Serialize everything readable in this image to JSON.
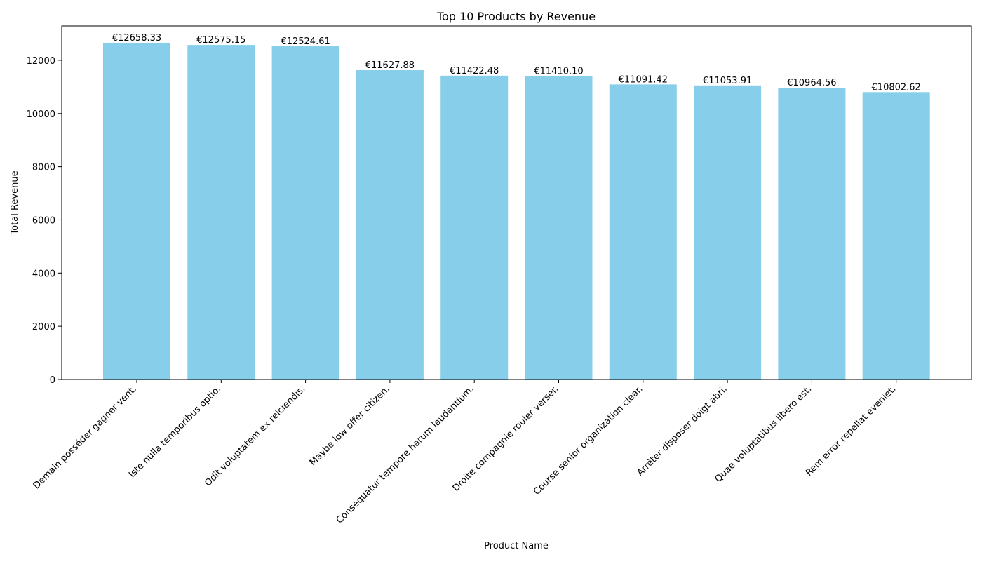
{
  "chart_data": {
    "type": "bar",
    "title": "Top 10 Products by Revenue",
    "xlabel": "Product Name",
    "ylabel": "Total Revenue",
    "ylim": [
      0,
      13290
    ],
    "yticks": [
      0,
      2000,
      4000,
      6000,
      8000,
      10000,
      12000
    ],
    "ytick_labels": [
      "0",
      "2000",
      "4000",
      "6000",
      "8000",
      "10000",
      "12000"
    ],
    "grid": false,
    "legend": "none",
    "bar_color": "#87CEEB",
    "categories": [
      "Demain posséder gagner vent.",
      "Iste nulla temporibus optio.",
      "Odit voluptatem ex reiciendis.",
      "Maybe low offer citizen.",
      "Consequatur tempore harum laudantium.",
      "Droite compagnie rouler verser.",
      "Course senior organization clear.",
      "Arrêter disposer doigt abri.",
      "Quae voluptatibus libero est.",
      "Rem error repellat eveniet."
    ],
    "values": [
      12658.33,
      12575.15,
      12524.61,
      11627.88,
      11422.48,
      11410.1,
      11091.42,
      11053.91,
      10964.56,
      10802.62
    ],
    "value_labels": [
      "€12658.33",
      "€12575.15",
      "€12524.61",
      "€11627.88",
      "€11422.48",
      "€11410.10",
      "€11091.42",
      "€11053.91",
      "€10964.56",
      "€10802.62"
    ]
  }
}
